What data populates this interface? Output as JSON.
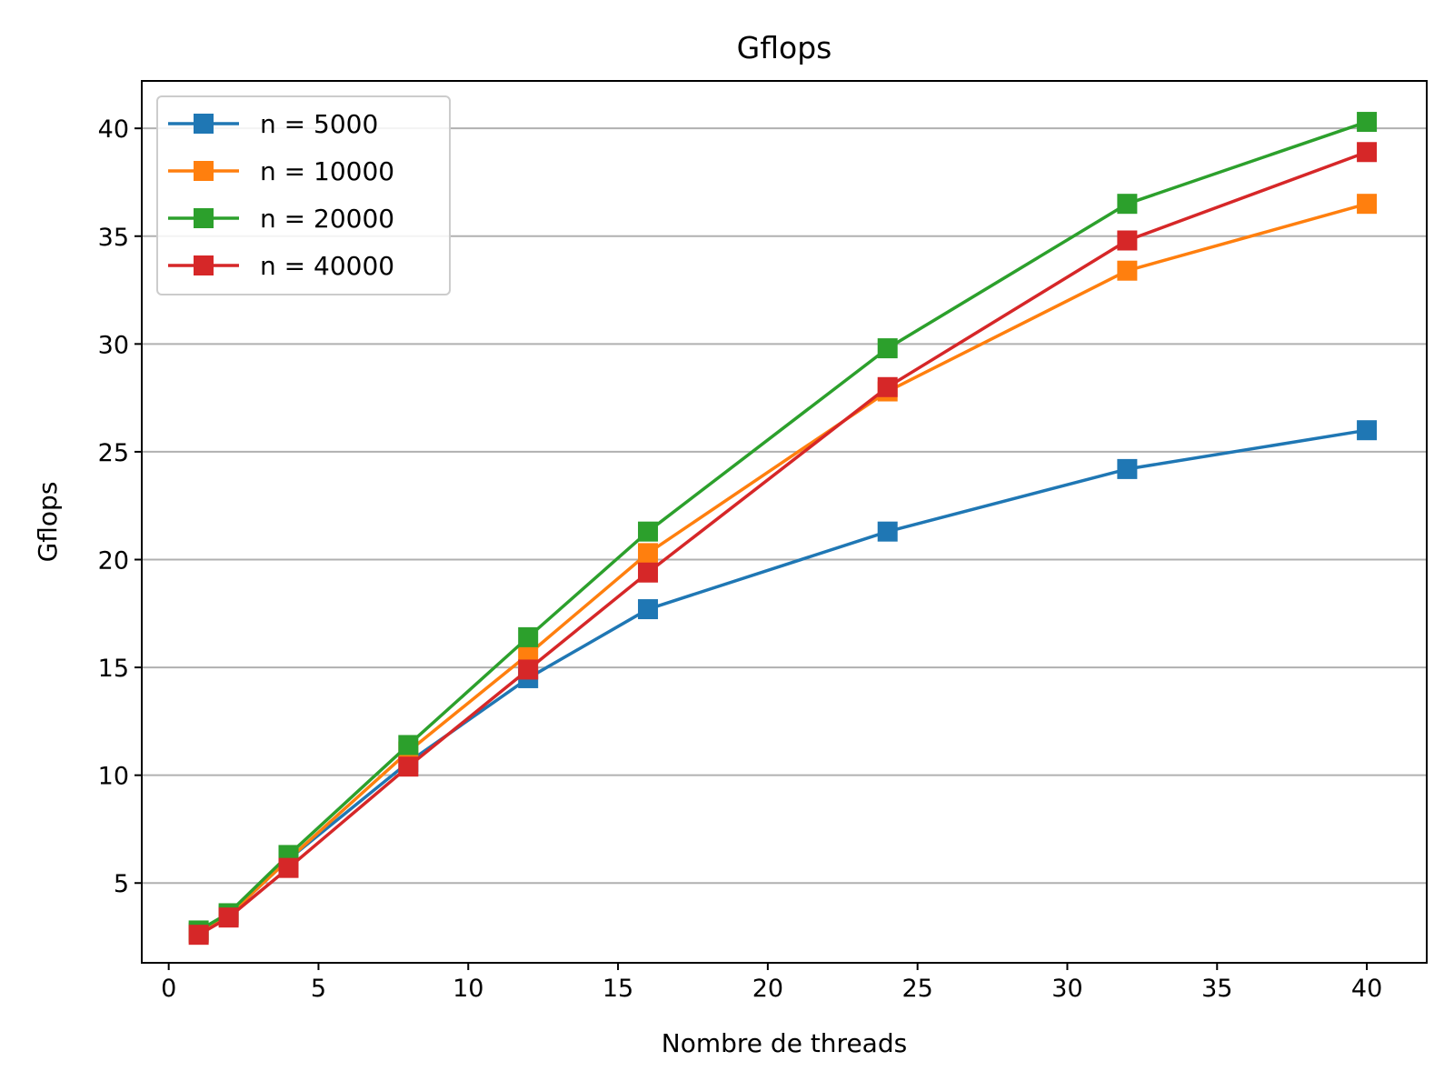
{
  "chart_data": {
    "type": "line",
    "title": "Gflops",
    "xlabel": "Nombre de threads",
    "ylabel": "Gflops",
    "xlim": [
      -0.9,
      42
    ],
    "ylim": [
      1.3,
      42.2
    ],
    "xticks": [
      0,
      5,
      10,
      15,
      20,
      25,
      30,
      35,
      40
    ],
    "yticks": [
      5,
      10,
      15,
      20,
      25,
      30,
      35,
      40
    ],
    "grid": "horizontal",
    "legend_position": "top-left",
    "marker": "square",
    "x": [
      1,
      2,
      4,
      8,
      12,
      16,
      24,
      32,
      40
    ],
    "series": [
      {
        "name": "n = 5000",
        "color": "#1f77b4",
        "values": [
          2.7,
          3.5,
          6.1,
          10.6,
          14.5,
          17.7,
          21.3,
          24.2,
          26.0
        ]
      },
      {
        "name": "n = 10000",
        "color": "#ff7f0e",
        "values": [
          2.7,
          3.5,
          6.1,
          11.1,
          15.6,
          20.3,
          27.8,
          33.4,
          36.5
        ]
      },
      {
        "name": "n = 20000",
        "color": "#2ca02c",
        "values": [
          2.8,
          3.6,
          6.3,
          11.4,
          16.4,
          21.3,
          29.8,
          36.5,
          40.3
        ]
      },
      {
        "name": "n = 40000",
        "color": "#d62728",
        "values": [
          2.6,
          3.4,
          5.7,
          10.4,
          14.9,
          19.4,
          28.0,
          34.8,
          38.9
        ]
      }
    ]
  }
}
